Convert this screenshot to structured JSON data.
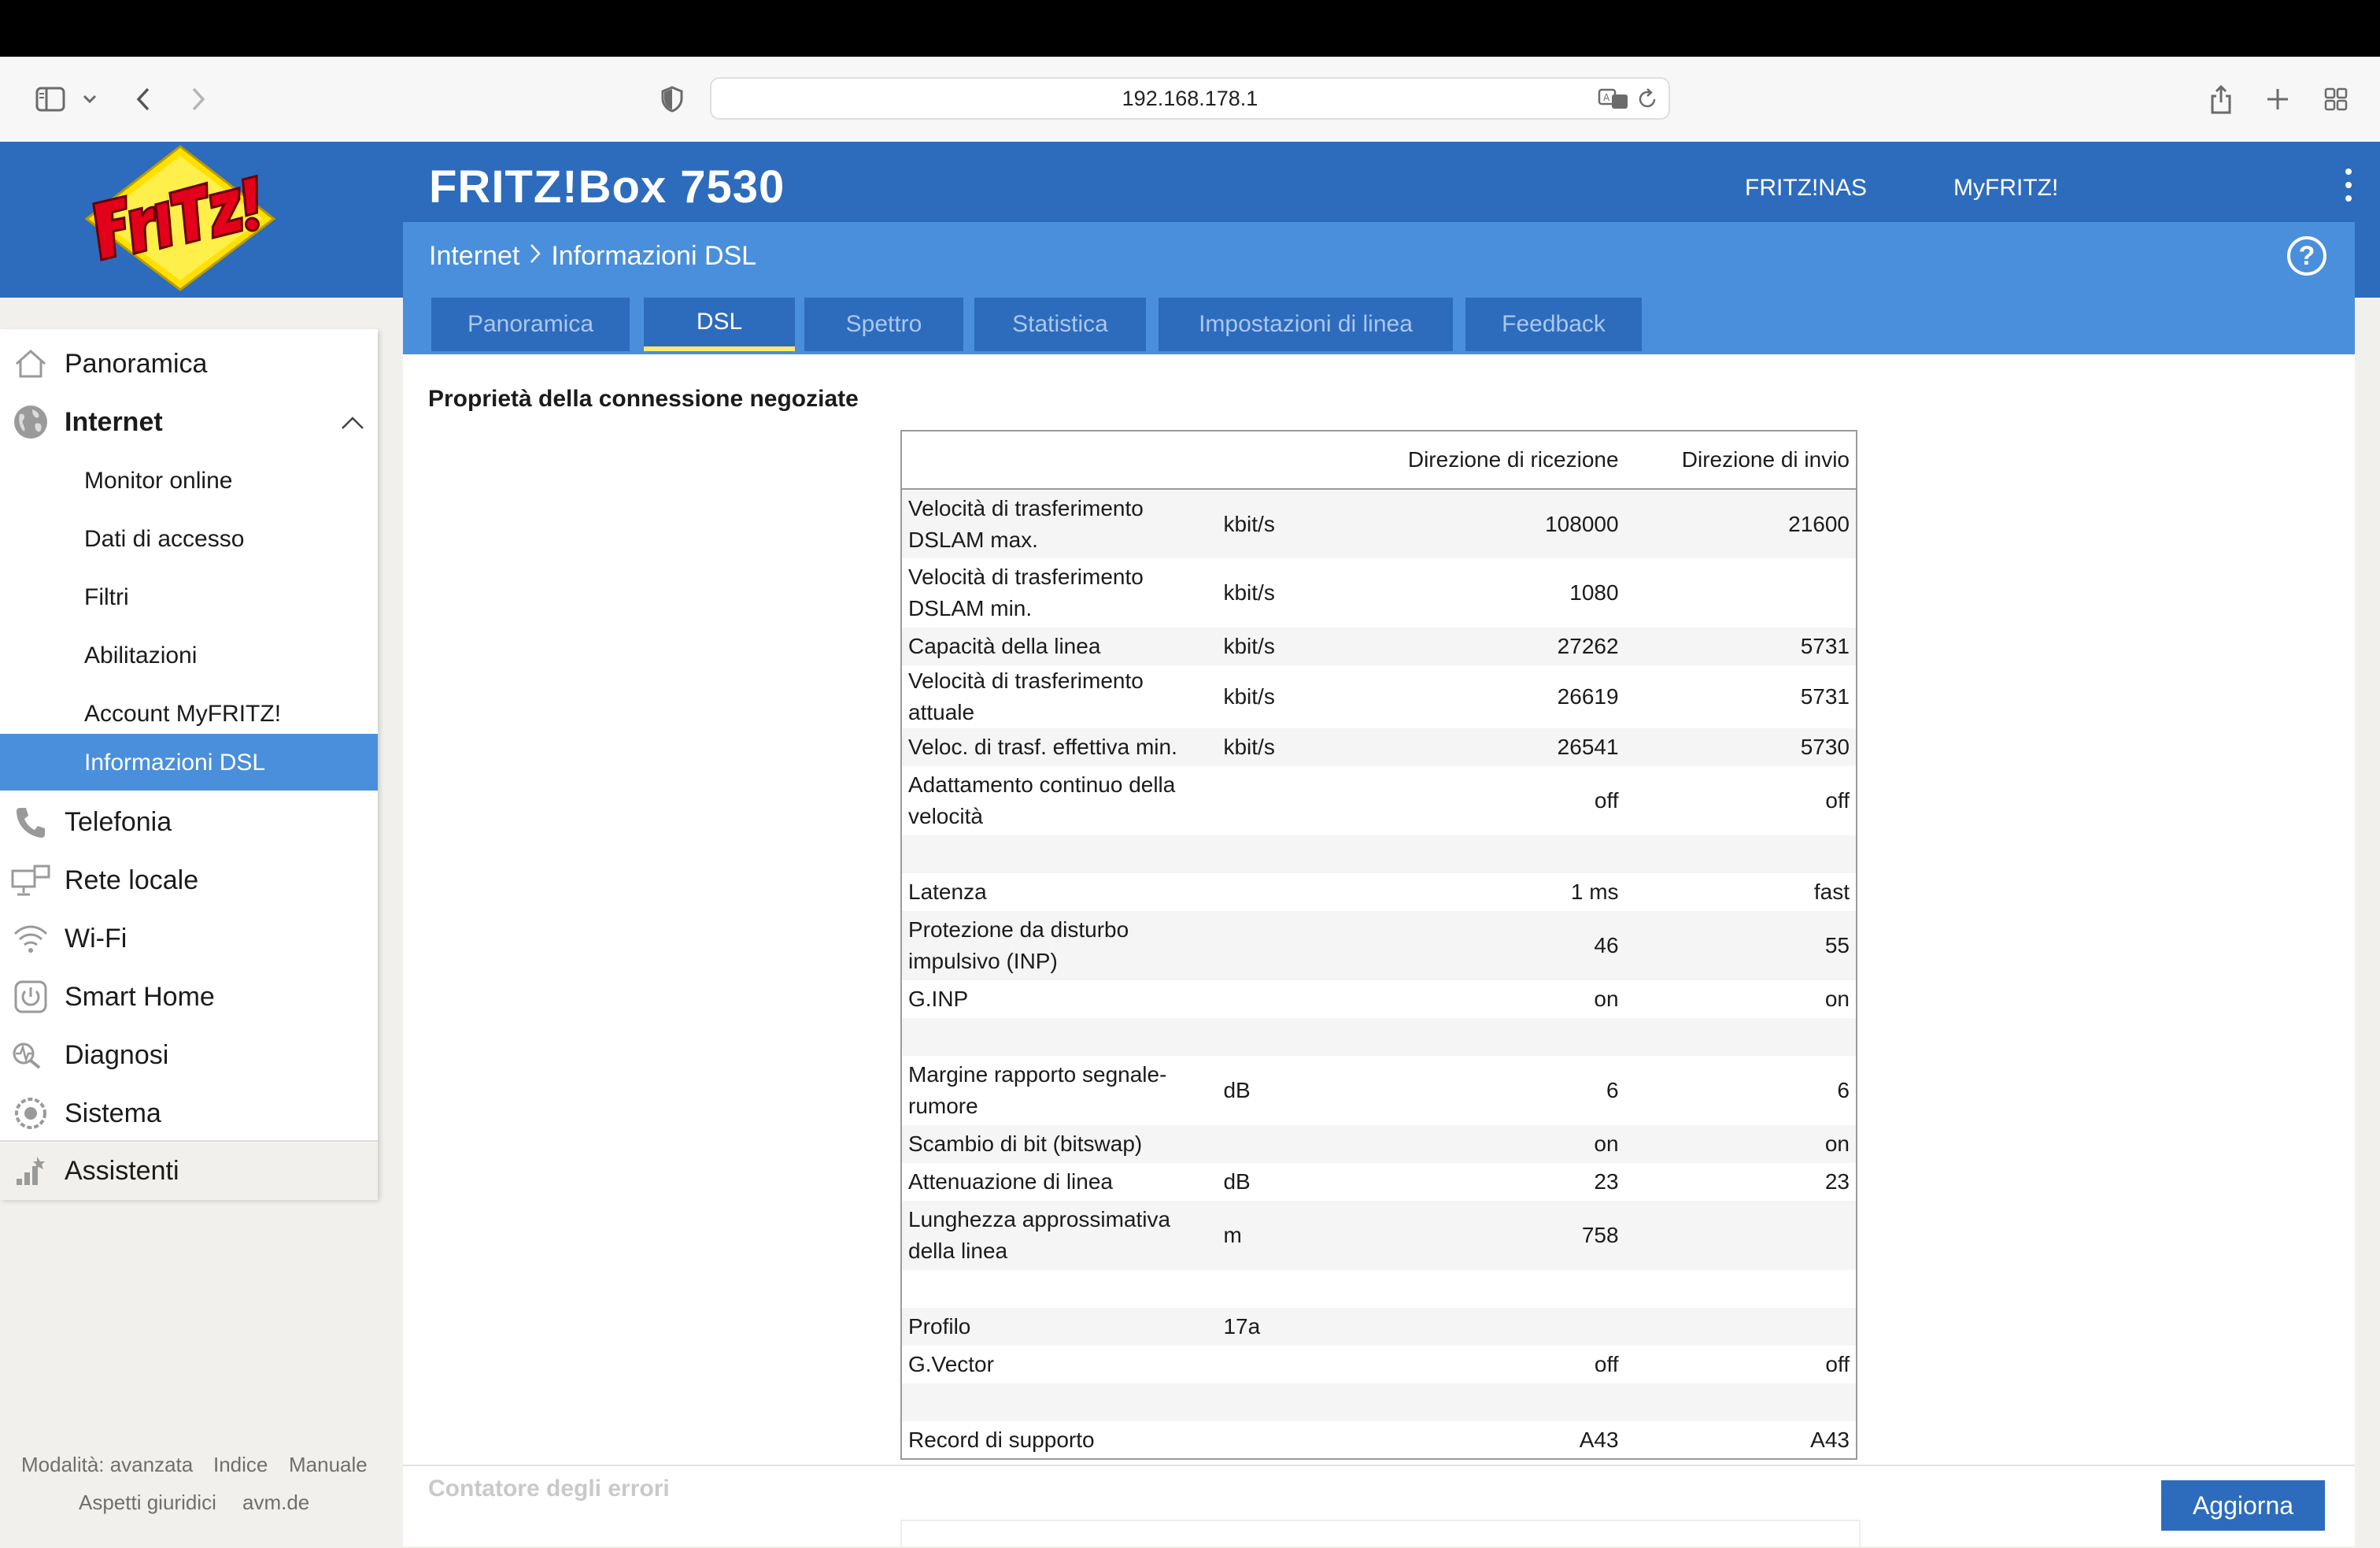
{
  "browser": {
    "url": "192.168.178.1"
  },
  "header": {
    "product": "FRITZ!Box 7530",
    "links": [
      "FRITZ!NAS",
      "MyFRITZ!"
    ],
    "breadcrumb": [
      "Internet",
      "Informazioni DSL"
    ]
  },
  "tabs": [
    {
      "label": "Panoramica"
    },
    {
      "label": "DSL",
      "active": true
    },
    {
      "label": "Spettro"
    },
    {
      "label": "Statistica"
    },
    {
      "label": "Impostazioni di linea"
    },
    {
      "label": "Feedback"
    }
  ],
  "sidebar": {
    "items": [
      {
        "label": "Panoramica",
        "icon": "home-icon"
      },
      {
        "label": "Internet",
        "icon": "globe-icon",
        "expanded": true
      },
      {
        "label": "Telefonia",
        "icon": "phone-icon"
      },
      {
        "label": "Rete locale",
        "icon": "network-icon"
      },
      {
        "label": "Wi-Fi",
        "icon": "wifi-icon"
      },
      {
        "label": "Smart Home",
        "icon": "power-icon"
      },
      {
        "label": "Diagnosi",
        "icon": "diagnosis-icon"
      },
      {
        "label": "Sistema",
        "icon": "system-icon"
      },
      {
        "label": "Assistenti",
        "icon": "wizard-icon"
      }
    ],
    "sub_items": [
      {
        "label": "Monitor online"
      },
      {
        "label": "Dati di accesso"
      },
      {
        "label": "Filtri"
      },
      {
        "label": "Abilitazioni"
      },
      {
        "label": "Account MyFRITZ!"
      },
      {
        "label": "Informazioni DSL",
        "active": true
      }
    ],
    "footer": {
      "mode": "Modalità: avanzata",
      "index": "Indice",
      "manual": "Manuale",
      "legal": "Aspetti giuridici",
      "site": "avm.de"
    }
  },
  "main": {
    "section_title": "Proprietà della connessione negoziate",
    "table": {
      "headers": {
        "down": "Direzione di ricezione",
        "up": "Direzione di invio"
      },
      "rows": [
        {
          "label": "Velocità di trasferimento DSLAM max.",
          "unit": "kbit/s",
          "down": "108000",
          "up": "21600"
        },
        {
          "label": "Velocità di trasferimento DSLAM min.",
          "unit": "kbit/s",
          "down": "1080",
          "up": ""
        },
        {
          "label": "Capacità della linea",
          "unit": "kbit/s",
          "down": "27262",
          "up": "5731"
        },
        {
          "label": "Velocità di trasferimento attuale",
          "unit": "kbit/s",
          "down": "26619",
          "up": "5731"
        },
        {
          "label": "Veloc. di trasf. effettiva min.",
          "unit": "kbit/s",
          "down": "26541",
          "up": "5730"
        },
        {
          "label": "Adattamento continuo della velocità",
          "unit": "",
          "down": "off",
          "up": "off"
        },
        {
          "spacer": true
        },
        {
          "label": "Latenza",
          "unit": "",
          "down": "1 ms",
          "up": "fast"
        },
        {
          "label": "Protezione da disturbo impulsivo (INP)",
          "unit": "",
          "down": "46",
          "up": "55"
        },
        {
          "label": "G.INP",
          "unit": "",
          "down": "on",
          "up": "on"
        },
        {
          "spacer": true
        },
        {
          "label": "Margine rapporto segnale-rumore",
          "unit": "dB",
          "down": "6",
          "up": "6"
        },
        {
          "label": "Scambio di bit (bitswap)",
          "unit": "",
          "down": "on",
          "up": "on"
        },
        {
          "label": "Attenuazione di linea",
          "unit": "dB",
          "down": "23",
          "up": "23"
        },
        {
          "label": "Lunghezza approssimativa della linea",
          "unit": "m",
          "down": "758",
          "up": ""
        },
        {
          "spacer": true
        },
        {
          "label": "Profilo",
          "unit": "17a",
          "down": "",
          "up": ""
        },
        {
          "label": "G.Vector",
          "unit": "",
          "down": "off",
          "up": "off"
        },
        {
          "spacer": true
        },
        {
          "label": "Record di supporto",
          "unit": "",
          "down": "A43",
          "up": "A43"
        }
      ]
    },
    "errors_title": "Contatore degli errori",
    "refresh_label": "Aggiorna"
  },
  "colors": {
    "header_blue": "#2d6bbd",
    "subheader_blue": "#4a8fdb",
    "active_tab_underline": "#ffe96a"
  }
}
